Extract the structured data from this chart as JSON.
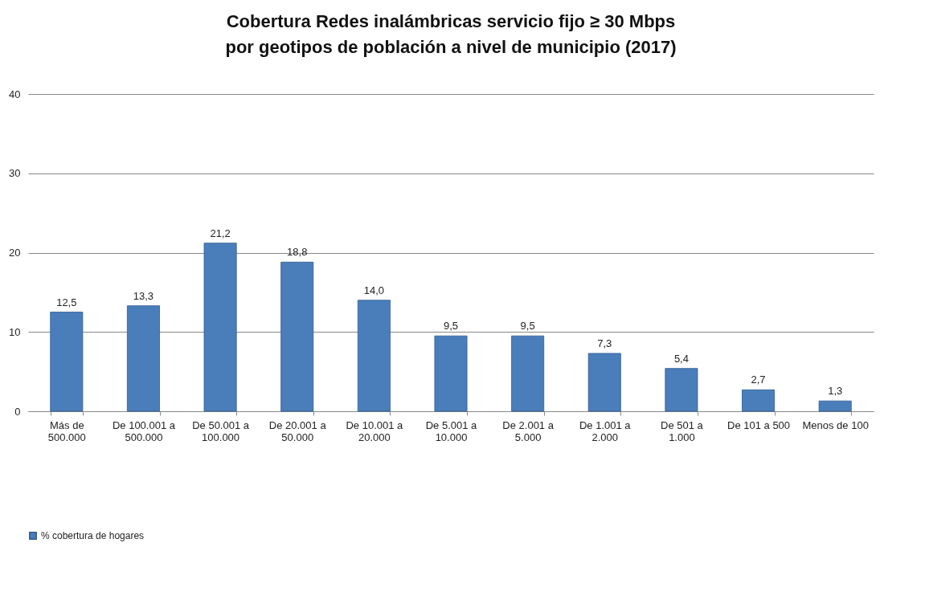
{
  "chart_data": {
    "type": "bar",
    "title": "Cobertura Redes inalámbricas servicio fijo ≥ 30 Mbps\npor geotipos de población a nivel de municipio (2017)",
    "categories": [
      "Más de 500.000",
      "De 100.001 a 500.000",
      "De 50.001 a 100.000",
      "De 20.001 a 50.000",
      "De 10.001 a 20.000",
      "De 5.001 a 10.000",
      "De 2.001 a 5.000",
      "De 1.001 a 2.000",
      "De 501 a 1.000",
      "De 101 a 500",
      "Menos de 100"
    ],
    "series": [
      {
        "name": "% cobertura de hogares",
        "color": "#4a7ebb",
        "values": [
          12.5,
          13.3,
          21.2,
          18.8,
          14.0,
          9.5,
          9.5,
          7.3,
          5.4,
          2.7,
          1.3
        ],
        "value_labels": [
          "12,5",
          "13,3",
          "21,2",
          "18,8",
          "14,0",
          "9,5",
          "9,5",
          "7,3",
          "5,4",
          "2,7",
          "1,3"
        ]
      }
    ],
    "ylim": [
      0,
      40
    ],
    "yticks": [
      0,
      10,
      20,
      30,
      40
    ],
    "grid": "y",
    "legend": "bottom"
  }
}
